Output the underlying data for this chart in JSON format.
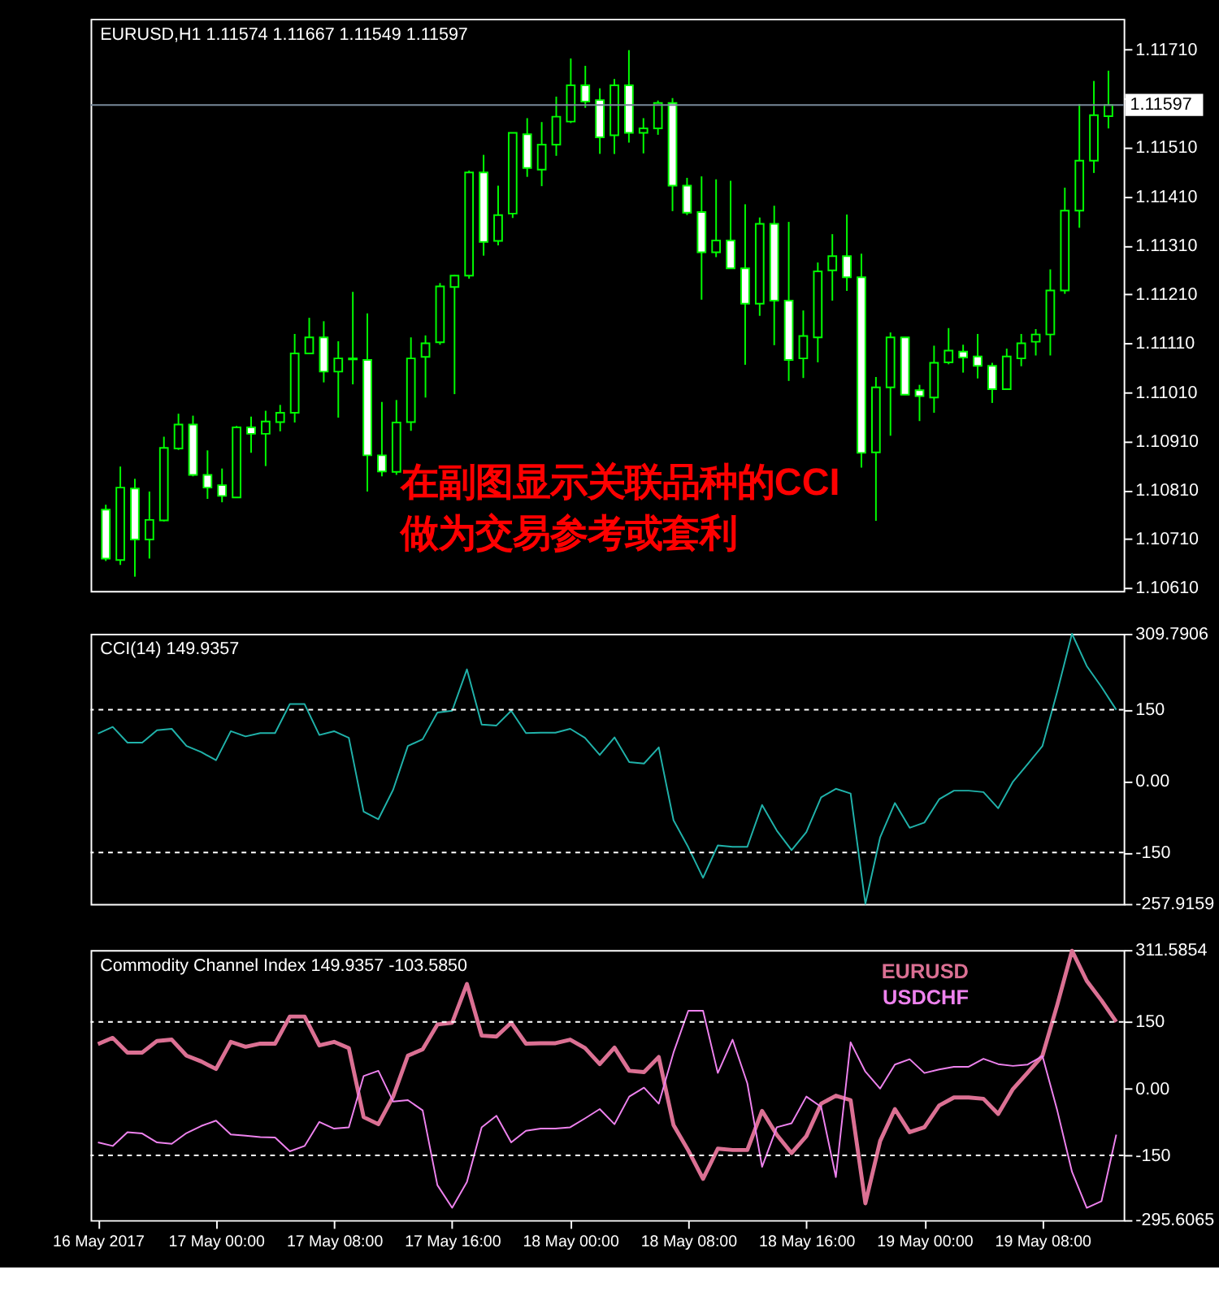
{
  "chart_data": [
    {
      "type": "candlestick",
      "title": "EURUSD,H1  1.11574 1.11667 1.11549 1.11597",
      "color": "#00ff00",
      "tick_labels": "y",
      "categories": [
        null,
        null,
        null,
        null,
        null,
        null,
        null,
        null,
        null,
        null,
        null,
        null,
        null,
        null,
        null,
        null,
        null,
        null,
        null,
        null,
        null,
        null,
        null,
        null,
        null,
        null,
        null,
        null,
        null,
        null,
        null,
        null,
        null,
        null,
        null,
        null,
        null,
        null,
        null,
        null,
        null,
        null,
        null,
        null,
        null,
        null,
        null,
        null,
        null,
        null,
        null,
        null,
        null,
        null,
        null,
        null,
        null,
        null,
        null,
        null,
        null,
        null,
        null,
        null,
        null,
        null,
        null,
        null,
        null,
        null
      ],
      "ohlc": [
        [
          1.1077,
          1.1078,
          1.10665,
          1.1067
        ],
        [
          1.10667,
          1.10858,
          1.10657,
          1.10815
        ],
        [
          1.10813,
          1.10833,
          1.10633,
          1.10709
        ],
        [
          1.10709,
          1.10807,
          1.1067,
          1.10749
        ],
        [
          1.10748,
          1.10919,
          1.10746,
          1.10896
        ],
        [
          1.10895,
          1.10966,
          1.10892,
          1.10944
        ],
        [
          1.10944,
          1.10962,
          1.10838,
          1.10841
        ],
        [
          1.10841,
          1.10891,
          1.10792,
          1.10815
        ],
        [
          1.1082,
          1.10854,
          1.10785,
          1.10798
        ],
        [
          1.10795,
          1.10941,
          1.10795,
          1.10938
        ],
        [
          1.10938,
          1.1096,
          1.10886,
          1.10925
        ],
        [
          1.10925,
          1.10972,
          1.10859,
          1.1095
        ],
        [
          1.10949,
          1.10984,
          1.1093,
          1.10968
        ],
        [
          1.10968,
          1.11129,
          1.10948,
          1.11089
        ],
        [
          1.11089,
          1.11162,
          1.11089,
          1.11122
        ],
        [
          1.11122,
          1.11155,
          1.1103,
          1.11052
        ],
        [
          1.11052,
          1.11114,
          1.10958,
          1.11079
        ],
        [
          1.11077,
          1.11215,
          1.11026,
          1.11079
        ],
        [
          1.11076,
          1.11171,
          1.10807,
          1.10881
        ],
        [
          1.10881,
          1.1099,
          1.10838,
          1.10848
        ],
        [
          1.10847,
          1.10994,
          1.10841,
          1.10948
        ],
        [
          1.10949,
          1.11122,
          1.10931,
          1.11079
        ],
        [
          1.11082,
          1.11126,
          1.10999,
          1.1111
        ],
        [
          1.11112,
          1.11233,
          1.11107,
          1.11226
        ],
        [
          1.11225,
          1.1125,
          1.11006,
          1.11248
        ],
        [
          1.11248,
          1.11463,
          1.11242,
          1.11459
        ],
        [
          1.11459,
          1.11495,
          1.11289,
          1.11317
        ],
        [
          1.11319,
          1.11432,
          1.1131,
          1.11372
        ],
        [
          1.11375,
          1.1154,
          1.11366,
          1.1154
        ],
        [
          1.11537,
          1.1157,
          1.1145,
          1.11468
        ],
        [
          1.11465,
          1.11562,
          1.11431,
          1.11516
        ],
        [
          1.11516,
          1.11614,
          1.11493,
          1.11573
        ],
        [
          1.11563,
          1.11692,
          1.1156,
          1.11637
        ],
        [
          1.11637,
          1.11677,
          1.11591,
          1.11604
        ],
        [
          1.11607,
          1.11631,
          1.11497,
          1.11531
        ],
        [
          1.11535,
          1.1165,
          1.11497,
          1.11637
        ],
        [
          1.11637,
          1.11709,
          1.1152,
          1.1154
        ],
        [
          1.1154,
          1.1157,
          1.11498,
          1.11549
        ],
        [
          1.11549,
          1.11606,
          1.11536,
          1.11601
        ],
        [
          1.11601,
          1.11611,
          1.1138,
          1.11432
        ],
        [
          1.11432,
          1.11448,
          1.11372,
          1.11377
        ],
        [
          1.11378,
          1.11451,
          1.11199,
          1.11296
        ],
        [
          1.11296,
          1.11445,
          1.11286,
          1.1132
        ],
        [
          1.1132,
          1.11442,
          1.11262,
          1.11263
        ],
        [
          1.11263,
          1.11394,
          1.11066,
          1.11191
        ],
        [
          1.11191,
          1.11367,
          1.11166,
          1.11354
        ],
        [
          1.11354,
          1.11391,
          1.11106,
          1.11197
        ],
        [
          1.11197,
          1.11358,
          1.11033,
          1.11076
        ],
        [
          1.11079,
          1.11177,
          1.11039,
          1.11125
        ],
        [
          1.11122,
          1.11275,
          1.11071,
          1.11257
        ],
        [
          1.11259,
          1.11333,
          1.11197,
          1.11288
        ],
        [
          1.11288,
          1.11373,
          1.11217,
          1.11245
        ],
        [
          1.11245,
          1.11293,
          1.10856,
          1.10886
        ],
        [
          1.10887,
          1.11041,
          1.10747,
          1.1102
        ],
        [
          1.1102,
          1.11132,
          1.10921,
          1.11122
        ],
        [
          1.11122,
          1.11122,
          1.11005,
          1.11005
        ],
        [
          1.11014,
          1.11025,
          1.10951,
          1.11002
        ],
        [
          1.10999,
          1.11105,
          1.10968,
          1.1107
        ],
        [
          1.11071,
          1.11141,
          1.11067,
          1.11095
        ],
        [
          1.11093,
          1.11107,
          1.1105,
          1.11081
        ],
        [
          1.11083,
          1.11129,
          1.11038,
          1.11064
        ],
        [
          1.11064,
          1.1107,
          1.10988,
          1.11016
        ],
        [
          1.11016,
          1.11099,
          1.11016,
          1.11083
        ],
        [
          1.11079,
          1.11129,
          1.11063,
          1.1111
        ],
        [
          1.11113,
          1.11139,
          1.11085,
          1.11128
        ],
        [
          1.11128,
          1.11261,
          1.11085,
          1.11218
        ],
        [
          1.11218,
          1.11428,
          1.11211,
          1.11381
        ],
        [
          1.11381,
          1.11599,
          1.11346,
          1.11483
        ],
        [
          1.11483,
          1.11646,
          1.11458,
          1.11576
        ],
        [
          1.11574,
          1.11667,
          1.11549,
          1.11597
        ]
      ],
      "ylim": [
        1.10604,
        1.11773
      ],
      "yticks": [
        {
          "value": 1.1171,
          "label": "1.11710"
        },
        {
          "value": 1.1161,
          "label": null
        },
        {
          "value": 1.1151,
          "label": "1.11510"
        },
        {
          "value": 1.1141,
          "label": "1.11410"
        },
        {
          "value": 1.1131,
          "label": "1.11310"
        },
        {
          "value": 1.1121,
          "label": "1.11210"
        },
        {
          "value": 1.1111,
          "label": "1.11110"
        },
        {
          "value": 1.1101,
          "label": "1.11010"
        },
        {
          "value": 1.1091,
          "label": "1.10910"
        },
        {
          "value": 1.1081,
          "label": "1.10810"
        },
        {
          "value": 1.1071,
          "label": "1.10710"
        },
        {
          "value": 1.1061,
          "label": "1.10610"
        }
      ],
      "ref_lines": [
        {
          "axis": "y",
          "value": 1.11597,
          "label": "1.11597",
          "color": "#778899",
          "line_style": "solid"
        }
      ],
      "annotations": [
        "在副图显示关联品种的CCI",
        "做为交易参考或套利"
      ]
    },
    {
      "type": "line",
      "title": "CCI(14) 149.9357",
      "color": "#20b2aa",
      "tick_labels": "y",
      "categories": [
        null,
        null,
        null,
        null,
        null,
        null,
        null,
        null,
        null,
        null,
        null,
        null,
        null,
        null,
        null,
        null,
        null,
        null,
        null,
        null,
        null,
        null,
        null,
        null,
        null,
        null,
        null,
        null,
        null,
        null,
        null,
        null,
        null,
        null,
        null,
        null,
        null,
        null,
        null,
        null,
        null,
        null,
        null,
        null,
        null,
        null,
        null,
        null,
        null,
        null,
        null,
        null,
        null,
        null,
        null,
        null,
        null,
        null,
        null,
        null,
        null,
        null,
        null,
        null,
        null,
        null,
        null,
        null,
        null,
        null
      ],
      "values": [
        100,
        114,
        81,
        81,
        107,
        110,
        74,
        61,
        44,
        105,
        94,
        101,
        101,
        162,
        162,
        97,
        105,
        91,
        -64,
        -80,
        -18,
        74,
        88,
        144,
        148,
        235,
        119,
        117,
        148,
        101,
        102,
        102,
        110,
        91,
        55,
        92,
        40,
        37,
        71,
        -82,
        -139,
        -203,
        -135,
        -138,
        -138,
        -50,
        -104,
        -145,
        -107,
        -34,
        -16,
        -26,
        -257.9159,
        -118,
        -46,
        -98,
        -87,
        -38,
        -20,
        -20,
        -23,
        -57,
        -1,
        36,
        74,
        188,
        309.7906,
        242,
        198,
        149.9357
      ],
      "ylim": [
        -257.9159,
        309.7906
      ],
      "yticks": [
        309.7906,
        150,
        {
          "value": 0,
          "label": "0.00"
        },
        -150,
        -257.9159
      ],
      "ref_lines": [
        {
          "axis": "y",
          "value": 150,
          "color": "#ffffff",
          "line_style": "dashed"
        },
        {
          "axis": "y",
          "value": -150,
          "color": "#ffffff",
          "line_style": "dashed"
        }
      ]
    },
    {
      "type": "line",
      "title": "Commodity Channel Index 149.9357 -103.5850",
      "legend": "top right",
      "categories": [
        "16 May 2017",
        null,
        null,
        null,
        null,
        null,
        null,
        null,
        "17 May 00:00",
        null,
        null,
        null,
        null,
        null,
        null,
        null,
        "17 May 08:00",
        null,
        null,
        null,
        null,
        null,
        null,
        null,
        "17 May 16:00",
        null,
        null,
        null,
        null,
        null,
        null,
        null,
        "18 May 00:00",
        null,
        null,
        null,
        null,
        null,
        null,
        null,
        "18 May 08:00",
        null,
        null,
        null,
        null,
        null,
        null,
        null,
        "18 May 16:00",
        null,
        null,
        null,
        null,
        null,
        null,
        null,
        "19 May 00:00",
        null,
        null,
        null,
        null,
        null,
        null,
        null,
        "19 May 08:00",
        null,
        null,
        null,
        null,
        null
      ],
      "series": [
        {
          "name": "EURUSD",
          "color": "#db7093",
          "values": [
            100,
            114,
            81,
            81,
            107,
            110,
            74,
            61,
            44,
            105,
            94,
            101,
            101,
            162,
            162,
            97,
            105,
            91,
            -64,
            -80,
            -18,
            74,
            88,
            144,
            148,
            235,
            119,
            117,
            148,
            101,
            102,
            102,
            110,
            91,
            55,
            92,
            40,
            37,
            71,
            -82,
            -139,
            -203,
            -135,
            -138,
            -138,
            -50,
            -104,
            -145,
            -107,
            -34,
            -16,
            -26,
            -257.9159,
            -118,
            -46,
            -98,
            -87,
            -38,
            -20,
            -20,
            -23,
            -57,
            -1,
            36,
            74,
            188,
            309.7906,
            242,
            198,
            149.9357
          ]
        },
        {
          "name": "USDCHF",
          "color": "#ee82ee",
          "values": [
            -121,
            -129,
            -98,
            -101,
            -121,
            -124,
            -100,
            -84,
            -72,
            -103,
            -106,
            -109,
            -110,
            -141,
            -129,
            -75,
            -90,
            -87,
            28,
            40,
            -29,
            -26,
            -49,
            -217,
            -268,
            -210,
            -87,
            -61,
            -121,
            -95,
            -90,
            -90,
            -87,
            -67,
            -46,
            -80,
            -18,
            2,
            -34,
            81,
            175,
            175,
            35,
            110,
            12,
            -176,
            -87,
            -78,
            -18,
            -41,
            -199,
            104,
            38,
            0,
            54,
            66,
            35,
            43,
            49,
            49,
            67,
            55,
            51,
            54,
            73,
            -49,
            -187,
            -268,
            -253,
            -103.585
          ]
        }
      ],
      "ylim": [
        -295.6065,
        311.5854
      ],
      "yticks": [
        311.5854,
        150,
        {
          "value": 0,
          "label": "0.00"
        },
        -150,
        -295.6065
      ],
      "ref_lines": [
        {
          "axis": "y",
          "value": 150,
          "color": "#ffffff",
          "line_style": "dashed"
        },
        {
          "axis": "y",
          "value": -150,
          "color": "#ffffff",
          "line_style": "dashed"
        }
      ]
    }
  ]
}
